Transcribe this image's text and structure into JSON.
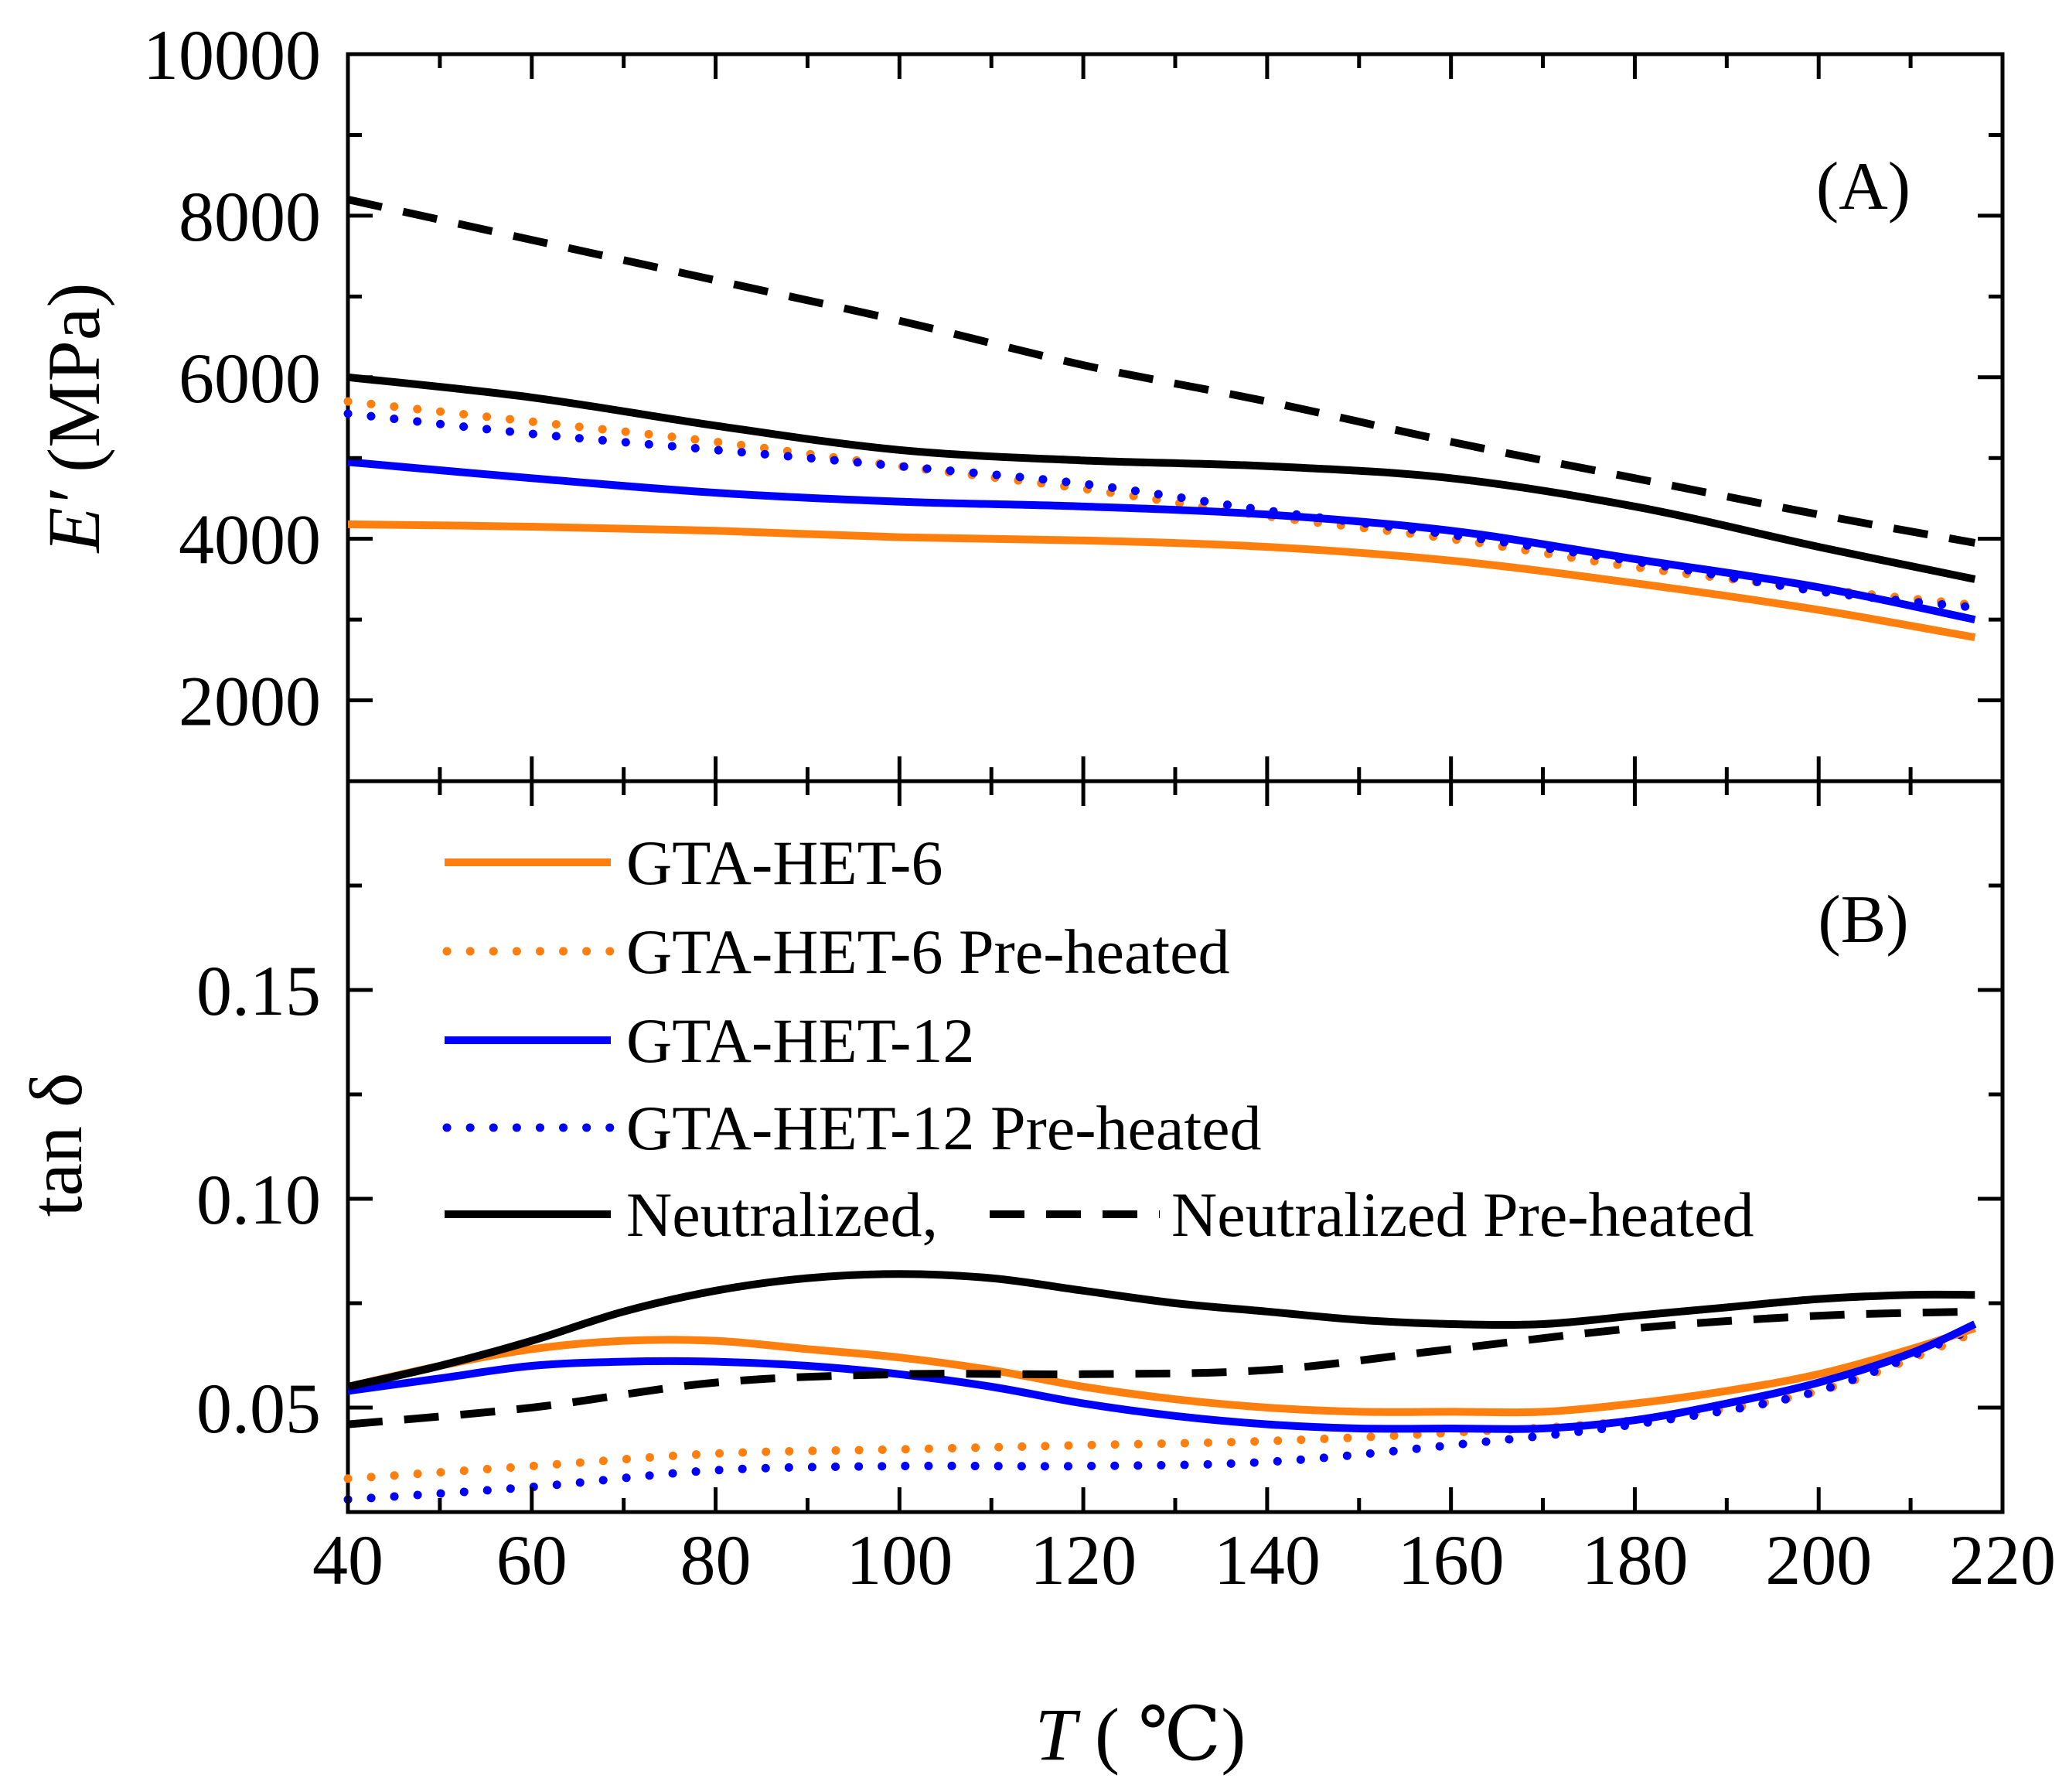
{
  "chart_data": [
    {
      "panel": "A",
      "type": "line",
      "panel_label": "(A)",
      "ylabel_main": "E′",
      "ylabel_unit": " (MPa)",
      "xlim": [
        40,
        220
      ],
      "ylim": [
        1000,
        10000
      ],
      "y_ticks": [
        2000,
        4000,
        6000,
        8000,
        10000
      ],
      "x_ticks": [
        40,
        60,
        80,
        100,
        120,
        140,
        160,
        180,
        200,
        220
      ],
      "series": [
        {
          "id": "gta6",
          "name": "GTA-HET-6",
          "color": "#ff7f0e",
          "dash": "solid",
          "x": [
            40,
            60,
            80,
            100,
            120,
            140,
            160,
            180,
            200,
            217
          ],
          "y": [
            4180,
            4150,
            4100,
            4020,
            3980,
            3900,
            3730,
            3450,
            3120,
            2780
          ]
        },
        {
          "id": "gta6p",
          "name": "GTA-HET-6 Pre-heated",
          "color": "#ff7f0e",
          "dash": "dotted",
          "x": [
            40,
            60,
            80,
            100,
            120,
            140,
            160,
            180,
            200,
            217
          ],
          "y": [
            5700,
            5450,
            5200,
            4900,
            4620,
            4280,
            4000,
            3650,
            3380,
            3180
          ]
        },
        {
          "id": "gta12",
          "name": "GTA-HET-12",
          "color": "#0000ff",
          "dash": "solid",
          "x": [
            40,
            60,
            80,
            100,
            120,
            140,
            160,
            180,
            200,
            217
          ],
          "y": [
            4950,
            4750,
            4570,
            4460,
            4400,
            4300,
            4100,
            3750,
            3400,
            3000
          ]
        },
        {
          "id": "gta12p",
          "name": "GTA-HET-12 Pre-heated",
          "color": "#0000ff",
          "dash": "dotted",
          "x": [
            40,
            60,
            80,
            100,
            120,
            140,
            160,
            180,
            200,
            217
          ],
          "y": [
            5550,
            5300,
            5100,
            4900,
            4680,
            4350,
            4050,
            3720,
            3350,
            3150
          ]
        },
        {
          "id": "neu",
          "name": "Neutralized,",
          "color": "#000000",
          "dash": "solid",
          "x": [
            40,
            60,
            80,
            100,
            120,
            140,
            160,
            180,
            200,
            217
          ],
          "y": [
            6000,
            5750,
            5400,
            5100,
            4970,
            4900,
            4750,
            4400,
            3900,
            3500
          ]
        },
        {
          "id": "neup",
          "name": "Neutralized Pre-heated",
          "color": "#000000",
          "dash": "dashed",
          "x": [
            40,
            60,
            80,
            100,
            120,
            140,
            160,
            180,
            200,
            217
          ],
          "y": [
            8200,
            7700,
            7200,
            6700,
            6150,
            5700,
            5200,
            4750,
            4300,
            3950
          ]
        }
      ]
    },
    {
      "panel": "B",
      "type": "line",
      "panel_label": "(B)",
      "ylabel": "tan δ",
      "xlabel_main": "T",
      "xlabel_unit": " ( ℃)",
      "xlim": [
        40,
        220
      ],
      "ylim": [
        0.025,
        0.2
      ],
      "y_ticks_text": [
        "0.05",
        "0.10",
        "0.15"
      ],
      "x_ticks": [
        40,
        60,
        80,
        100,
        120,
        140,
        160,
        180,
        200,
        220
      ],
      "series": [
        {
          "id": "gta6",
          "name": "GTA-HET-6",
          "color": "#ff7f0e",
          "dash": "solid",
          "x": [
            40,
            50,
            60,
            70,
            80,
            90,
            100,
            110,
            120,
            130,
            140,
            150,
            160,
            170,
            180,
            190,
            200,
            210,
            217
          ],
          "y": [
            0.055,
            0.06,
            0.064,
            0.066,
            0.066,
            0.064,
            0.062,
            0.059,
            0.055,
            0.052,
            0.05,
            0.049,
            0.049,
            0.049,
            0.051,
            0.054,
            0.058,
            0.064,
            0.069
          ]
        },
        {
          "id": "gta6p",
          "name": "GTA-HET-6 Pre-heated",
          "color": "#ff7f0e",
          "dash": "dotted",
          "x": [
            40,
            60,
            80,
            100,
            120,
            140,
            160,
            180,
            200,
            217
          ],
          "y": [
            0.033,
            0.036,
            0.039,
            0.04,
            0.041,
            0.042,
            0.044,
            0.047,
            0.054,
            0.068
          ]
        },
        {
          "id": "gta12",
          "name": "GTA-HET-12",
          "color": "#0000ff",
          "dash": "solid",
          "x": [
            40,
            50,
            60,
            70,
            80,
            90,
            100,
            110,
            120,
            130,
            140,
            150,
            160,
            170,
            180,
            190,
            200,
            210,
            217
          ],
          "y": [
            0.054,
            0.057,
            0.06,
            0.061,
            0.061,
            0.06,
            0.058,
            0.055,
            0.051,
            0.048,
            0.046,
            0.045,
            0.045,
            0.045,
            0.047,
            0.051,
            0.056,
            0.063,
            0.07
          ]
        },
        {
          "id": "gta12p",
          "name": "GTA-HET-12 Pre-heated",
          "color": "#0000ff",
          "dash": "dotted",
          "x": [
            40,
            60,
            80,
            100,
            120,
            140,
            160,
            180,
            200,
            217
          ],
          "y": [
            0.028,
            0.031,
            0.035,
            0.036,
            0.036,
            0.037,
            0.041,
            0.046,
            0.054,
            0.069
          ]
        },
        {
          "id": "neu",
          "name": "Neutralized,",
          "color": "#000000",
          "dash": "solid",
          "x": [
            40,
            50,
            60,
            70,
            80,
            90,
            100,
            110,
            120,
            130,
            140,
            150,
            160,
            170,
            180,
            190,
            200,
            210,
            217
          ],
          "y": [
            0.055,
            0.06,
            0.066,
            0.073,
            0.078,
            0.081,
            0.082,
            0.081,
            0.078,
            0.075,
            0.073,
            0.071,
            0.07,
            0.07,
            0.072,
            0.074,
            0.076,
            0.077,
            0.077
          ]
        },
        {
          "id": "neup",
          "name": "Neutralized Pre-heated",
          "color": "#000000",
          "dash": "dashed",
          "x": [
            40,
            60,
            80,
            100,
            120,
            140,
            160,
            180,
            200,
            217
          ],
          "y": [
            0.046,
            0.05,
            0.056,
            0.058,
            0.058,
            0.059,
            0.064,
            0.069,
            0.072,
            0.073
          ]
        }
      ],
      "legend": {
        "placement": "upper-left",
        "entries": [
          "GTA-HET-6",
          "GTA-HET-6 Pre-heated",
          "GTA-HET-12",
          "GTA-HET-12 Pre-heated"
        ],
        "last_row": [
          "Neutralized,",
          "Neutralized Pre-heated"
        ]
      }
    }
  ]
}
